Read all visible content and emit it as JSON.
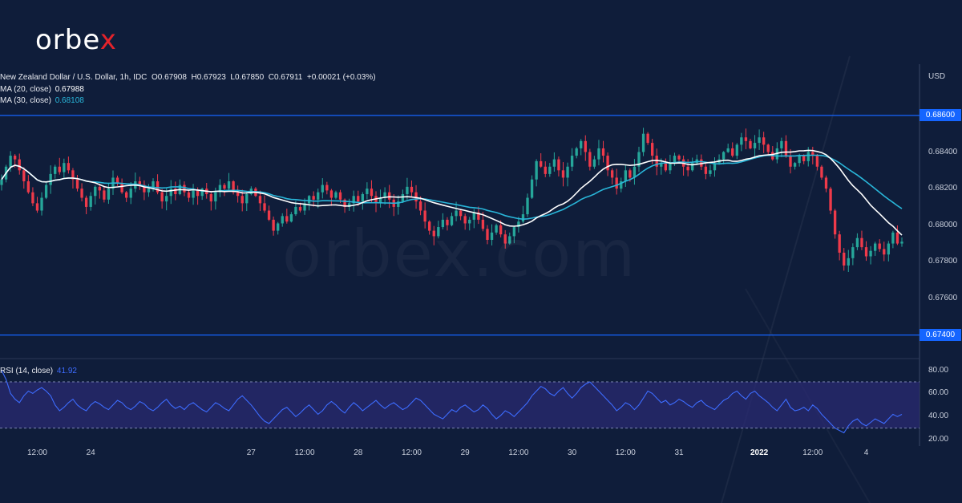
{
  "brand": {
    "logo_prefix": "orbe",
    "logo_x": "x",
    "watermark": "orbex.com"
  },
  "header": {
    "symbol": "New Zealand Dollar / U.S. Dollar, 1h, IDC",
    "o_label": "O",
    "o": "0.67908",
    "h_label": "H",
    "h": "0.67923",
    "l_label": "L",
    "l": "0.67850",
    "c_label": "C",
    "c": "0.67911",
    "change": "+0.00021 (+0.03%)"
  },
  "indicators": {
    "ma20_label": "MA (20, close)",
    "ma20_value": "0.67988",
    "ma30_label": "MA (30, close)",
    "ma30_value": "0.68108",
    "rsi_label": "RSI (14, close)",
    "rsi_value": "41.92"
  },
  "colors": {
    "bg": "#0f1d3a",
    "up": "#26a69a",
    "down": "#ef3a4a",
    "ma20": "#ffffff",
    "ma30": "#29b6d9",
    "level": "#1565ff",
    "rsi": "#3d6cff",
    "rsi_band": "#2a2a72"
  },
  "chart_data": {
    "type": "candlestick",
    "currency": "USD",
    "price_ticks": [
      "0.68600",
      "0.68400",
      "0.68200",
      "0.68000",
      "0.67800",
      "0.67600",
      "0.67400"
    ],
    "price_range": [
      0.6728,
      0.6888
    ],
    "levels": [
      {
        "value": 0.686,
        "label": "0.68600"
      },
      {
        "value": 0.674,
        "label": "0.67400"
      }
    ],
    "rsi_ticks": [
      "80.00",
      "60.00",
      "40.00",
      "20.00"
    ],
    "rsi_range": [
      18,
      88
    ],
    "rsi_band": [
      30,
      70
    ],
    "x_labels": [
      {
        "index": 8,
        "text": "12:00",
        "bold": false
      },
      {
        "index": 20,
        "text": "24",
        "bold": false
      },
      {
        "index": 56,
        "text": "27",
        "bold": false
      },
      {
        "index": 68,
        "text": "12:00",
        "bold": false
      },
      {
        "index": 80,
        "text": "28",
        "bold": false
      },
      {
        "index": 92,
        "text": "12:00",
        "bold": false
      },
      {
        "index": 104,
        "text": "29",
        "bold": false
      },
      {
        "index": 116,
        "text": "12:00",
        "bold": false
      },
      {
        "index": 128,
        "text": "30",
        "bold": false
      },
      {
        "index": 140,
        "text": "12:00",
        "bold": false
      },
      {
        "index": 152,
        "text": "31",
        "bold": false
      },
      {
        "index": 170,
        "text": "2022",
        "bold": true
      },
      {
        "index": 182,
        "text": "12:00",
        "bold": false
      },
      {
        "index": 194,
        "text": "4",
        "bold": false
      }
    ],
    "close": [
      0.6825,
      0.6832,
      0.6838,
      0.6836,
      0.683,
      0.6824,
      0.6818,
      0.6812,
      0.6808,
      0.6815,
      0.6822,
      0.6828,
      0.6832,
      0.6829,
      0.6834,
      0.683,
      0.6825,
      0.682,
      0.6815,
      0.681,
      0.6816,
      0.6821,
      0.6819,
      0.6814,
      0.682,
      0.6826,
      0.6823,
      0.6818,
      0.6815,
      0.682,
      0.6824,
      0.6822,
      0.6818,
      0.682,
      0.6824,
      0.6818,
      0.6813,
      0.6816,
      0.682,
      0.6817,
      0.6822,
      0.6818,
      0.6815,
      0.6819,
      0.6816,
      0.682,
      0.6817,
      0.6813,
      0.6818,
      0.6822,
      0.682,
      0.6824,
      0.6818,
      0.6816,
      0.6812,
      0.6817,
      0.682,
      0.6816,
      0.6812,
      0.6808,
      0.6803,
      0.6797,
      0.6801,
      0.6805,
      0.6802,
      0.6806,
      0.681,
      0.6808,
      0.6812,
      0.6816,
      0.6814,
      0.6818,
      0.6822,
      0.6819,
      0.6815,
      0.6818,
      0.6814,
      0.681,
      0.6812,
      0.6816,
      0.6813,
      0.6817,
      0.682,
      0.6816,
      0.6812,
      0.6815,
      0.6818,
      0.6814,
      0.681,
      0.6813,
      0.6817,
      0.6821,
      0.6818,
      0.6813,
      0.6808,
      0.6802,
      0.6797,
      0.6794,
      0.6799,
      0.6803,
      0.68,
      0.6805,
      0.6808,
      0.6805,
      0.6801,
      0.6803,
      0.6807,
      0.6803,
      0.6798,
      0.6792,
      0.6796,
      0.68,
      0.6795,
      0.679,
      0.6794,
      0.6799,
      0.6802,
      0.6806,
      0.6815,
      0.6825,
      0.6835,
      0.6832,
      0.6828,
      0.6832,
      0.6836,
      0.683,
      0.6826,
      0.6832,
      0.6838,
      0.6842,
      0.6846,
      0.684,
      0.6832,
      0.6836,
      0.6842,
      0.6838,
      0.683,
      0.6826,
      0.682,
      0.6824,
      0.683,
      0.6826,
      0.6832,
      0.684,
      0.685,
      0.6845,
      0.6838,
      0.6832,
      0.6834,
      0.683,
      0.6834,
      0.6838,
      0.6836,
      0.6832,
      0.683,
      0.6834,
      0.6836,
      0.6832,
      0.6828,
      0.683,
      0.6834,
      0.6836,
      0.684,
      0.6842,
      0.6838,
      0.6844,
      0.6848,
      0.6846,
      0.6842,
      0.6845,
      0.6848,
      0.6844,
      0.684,
      0.6836,
      0.6842,
      0.6846,
      0.6838,
      0.6832,
      0.6834,
      0.6838,
      0.6835,
      0.684,
      0.6838,
      0.6832,
      0.6826,
      0.682,
      0.6808,
      0.6795,
      0.6785,
      0.6778,
      0.6782,
      0.6788,
      0.6793,
      0.6788,
      0.6783,
      0.6786,
      0.679,
      0.6787,
      0.6784,
      0.679,
      0.6796,
      0.679,
      0.6791
    ],
    "rsi": [
      80,
      72,
      60,
      55,
      52,
      58,
      62,
      60,
      63,
      65,
      62,
      58,
      50,
      45,
      48,
      52,
      55,
      50,
      47,
      45,
      50,
      53,
      51,
      48,
      46,
      50,
      54,
      52,
      48,
      46,
      49,
      53,
      51,
      47,
      45,
      48,
      52,
      55,
      50,
      47,
      49,
      46,
      50,
      52,
      49,
      46,
      44,
      48,
      52,
      50,
      47,
      45,
      50,
      55,
      58,
      54,
      50,
      45,
      40,
      36,
      34,
      38,
      42,
      46,
      48,
      44,
      40,
      43,
      47,
      50,
      46,
      42,
      45,
      50,
      53,
      50,
      46,
      43,
      48,
      52,
      49,
      45,
      48,
      51,
      54,
      50,
      47,
      50,
      52,
      49,
      46,
      48,
      52,
      56,
      54,
      50,
      46,
      42,
      40,
      38,
      42,
      46,
      44,
      48,
      50,
      47,
      44,
      46,
      50,
      47,
      42,
      38,
      41,
      45,
      43,
      40,
      44,
      48,
      52,
      58,
      62,
      66,
      64,
      60,
      58,
      62,
      65,
      60,
      56,
      60,
      65,
      68,
      70,
      66,
      62,
      58,
      54,
      50,
      45,
      48,
      52,
      50,
      46,
      50,
      56,
      62,
      60,
      56,
      52,
      54,
      50,
      52,
      55,
      53,
      50,
      48,
      52,
      54,
      50,
      48,
      46,
      50,
      54,
      56,
      60,
      62,
      58,
      55,
      60,
      62,
      58,
      55,
      52,
      48,
      45,
      50,
      55,
      48,
      45,
      46,
      48,
      45,
      50,
      47,
      42,
      38,
      34,
      30,
      28,
      26,
      32,
      36,
      38,
      34,
      32,
      35,
      38,
      36,
      34,
      38,
      42,
      40,
      41.92
    ]
  }
}
